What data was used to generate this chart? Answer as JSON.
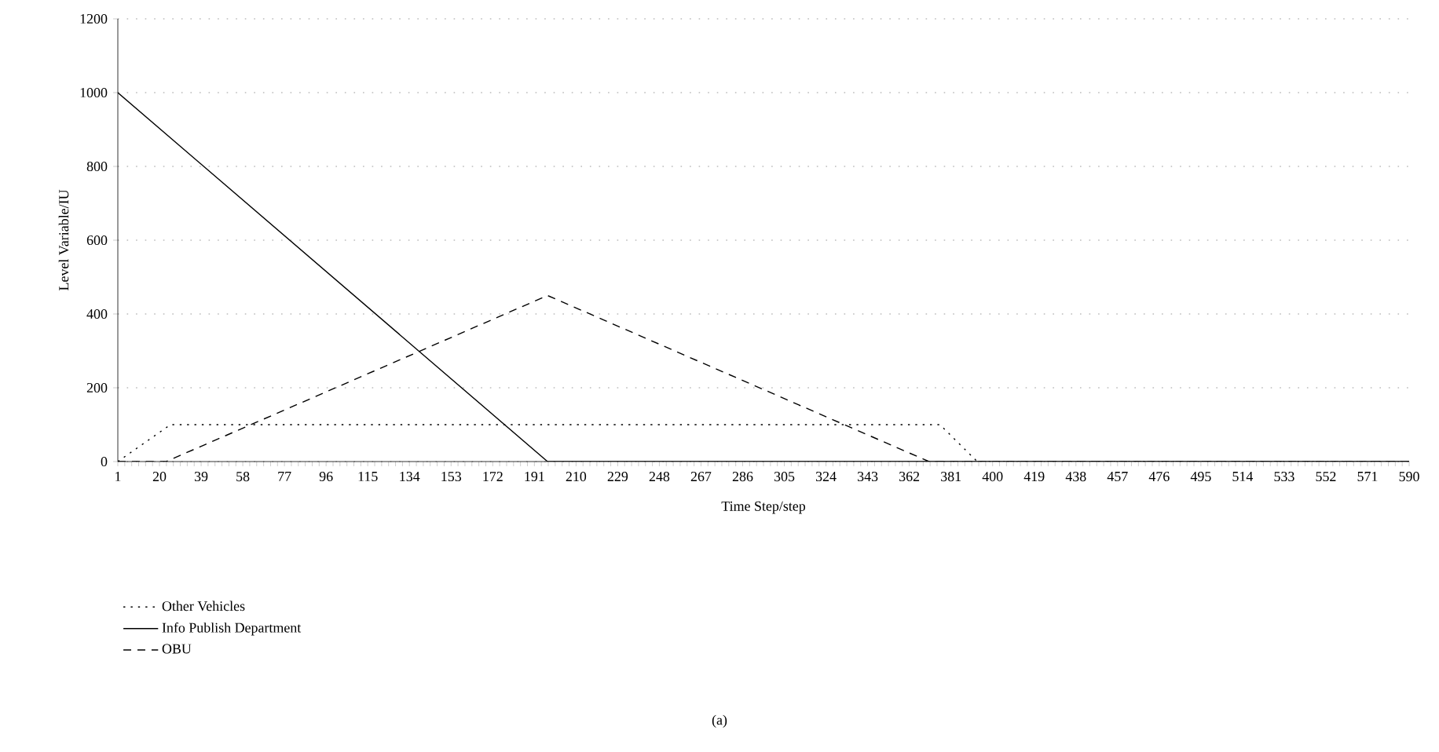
{
  "chart_data": {
    "type": "line",
    "xlabel": "Time Step/step",
    "ylabel": "Level Variable/IU",
    "annotations": [
      "(a)"
    ],
    "xlim": [
      1,
      590
    ],
    "xticks": [
      1,
      20,
      39,
      58,
      77,
      96,
      115,
      134,
      153,
      172,
      191,
      210,
      229,
      248,
      267,
      286,
      305,
      324,
      343,
      362,
      381,
      400,
      419,
      438,
      457,
      476,
      495,
      514,
      533,
      552,
      571,
      590
    ],
    "ylim": [
      0,
      1200
    ],
    "yticks": [
      0,
      200,
      400,
      600,
      800,
      1000,
      1200
    ],
    "grid": "y",
    "legend": "bottom left",
    "marker": "none",
    "series": [
      {
        "name": "Other Vehicles",
        "color": "#000000",
        "line_style": "dotted",
        "x": [
          1,
          25,
          376,
          393,
          590
        ],
        "values": [
          0,
          100,
          100,
          0,
          0
        ]
      },
      {
        "name": "Info Publish Department",
        "color": "#000000",
        "line_style": "solid",
        "x": [
          1,
          197,
          590
        ],
        "values": [
          1000,
          0,
          0
        ]
      },
      {
        "name": "OBU",
        "color": "#000000",
        "line_style": "dashed",
        "x": [
          1,
          23,
          197,
          371,
          590
        ],
        "values": [
          0,
          0,
          450,
          0,
          0
        ]
      }
    ]
  }
}
